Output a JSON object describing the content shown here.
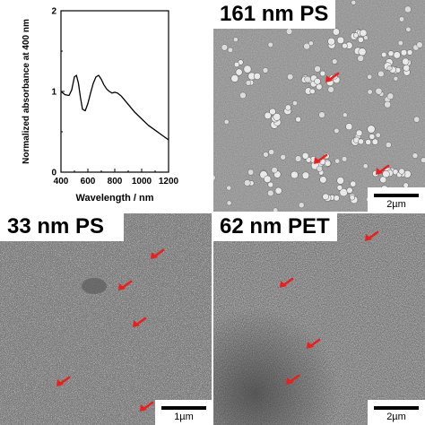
{
  "chart_data": {
    "type": "line",
    "xlabel": "Wavelength / nm",
    "ylabel": "Normalized absorbance at 400 nm",
    "xlim": [
      400,
      1200
    ],
    "ylim": [
      0,
      2
    ],
    "x_ticks": [
      "400",
      "600",
      "800",
      "1000",
      "1200"
    ],
    "y_ticks": [
      "0",
      "1",
      "2"
    ],
    "series": [
      {
        "x": [
          400,
          430,
          460,
          480,
          500,
          515,
          530,
          545,
          560,
          580,
          600,
          620,
          640,
          660,
          680,
          700,
          720,
          740,
          760,
          780,
          800,
          820,
          850,
          900,
          950,
          1000,
          1050,
          1100,
          1150,
          1200
        ],
        "values": [
          1.0,
          0.96,
          0.95,
          1.02,
          1.18,
          1.2,
          1.1,
          0.92,
          0.78,
          0.76,
          0.85,
          0.98,
          1.1,
          1.18,
          1.2,
          1.15,
          1.08,
          1.03,
          1.0,
          0.98,
          0.99,
          0.98,
          0.94,
          0.84,
          0.74,
          0.66,
          0.58,
          0.52,
          0.46,
          0.4
        ]
      }
    ]
  },
  "panels": {
    "ps161": {
      "label": "161 nm PS",
      "scale": "2µm"
    },
    "ps33": {
      "label": "33 nm PS",
      "scale": "1µm"
    },
    "pet62": {
      "label": "62 nm PET",
      "scale": "2µm"
    }
  },
  "colors": {
    "arrow": "#e8201e",
    "line": "#000000",
    "sem_gray": "#808080"
  }
}
